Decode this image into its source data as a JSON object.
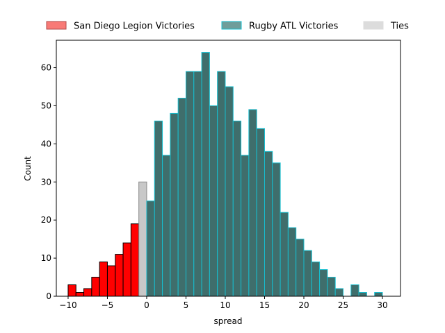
{
  "chart_data": {
    "type": "bar",
    "xlabel": "spread",
    "ylabel": "Count",
    "xlim": [
      -11.5,
      32.3
    ],
    "ylim": [
      0,
      67.2
    ],
    "xticks": [
      -10,
      -5,
      0,
      5,
      10,
      15,
      20,
      25,
      30
    ],
    "yticks": [
      0,
      10,
      20,
      30,
      40,
      50,
      60
    ],
    "grid": false,
    "legend_position": "top",
    "bin_width": 1,
    "series": [
      {
        "name": "San Diego Legion Victories",
        "color": "#ff0000",
        "edge_color": "#000000",
        "bins": [
          {
            "x": -9.5,
            "count": 3
          },
          {
            "x": -8.5,
            "count": 1
          },
          {
            "x": -7.5,
            "count": 2
          },
          {
            "x": -6.5,
            "count": 5
          },
          {
            "x": -5.5,
            "count": 9
          },
          {
            "x": -4.5,
            "count": 8
          },
          {
            "x": -3.5,
            "count": 11
          },
          {
            "x": -2.5,
            "count": 14
          },
          {
            "x": -1.5,
            "count": 19
          }
        ]
      },
      {
        "name": "Ties",
        "color": "#c8c8c8",
        "edge_color": "#8a8a8a",
        "bins": [
          {
            "x": -0.5,
            "count": 30
          }
        ]
      },
      {
        "name": "Rugby ATL Victories",
        "color": "#3f6e6c",
        "edge_color": "#17becf",
        "bins": [
          {
            "x": 0.5,
            "count": 25
          },
          {
            "x": 1.5,
            "count": 46
          },
          {
            "x": 2.5,
            "count": 37
          },
          {
            "x": 3.5,
            "count": 48
          },
          {
            "x": 4.5,
            "count": 52
          },
          {
            "x": 5.5,
            "count": 59
          },
          {
            "x": 6.5,
            "count": 59
          },
          {
            "x": 7.5,
            "count": 64
          },
          {
            "x": 8.5,
            "count": 50
          },
          {
            "x": 9.5,
            "count": 59
          },
          {
            "x": 10.5,
            "count": 55
          },
          {
            "x": 11.5,
            "count": 46
          },
          {
            "x": 12.5,
            "count": 37
          },
          {
            "x": 13.5,
            "count": 49
          },
          {
            "x": 14.5,
            "count": 44
          },
          {
            "x": 15.5,
            "count": 38
          },
          {
            "x": 16.5,
            "count": 35
          },
          {
            "x": 17.5,
            "count": 22
          },
          {
            "x": 18.5,
            "count": 18
          },
          {
            "x": 19.5,
            "count": 15
          },
          {
            "x": 20.5,
            "count": 12
          },
          {
            "x": 21.5,
            "count": 9
          },
          {
            "x": 22.5,
            "count": 7
          },
          {
            "x": 23.5,
            "count": 5
          },
          {
            "x": 24.5,
            "count": 2
          },
          {
            "x": 25.5,
            "count": 0
          },
          {
            "x": 26.5,
            "count": 3
          },
          {
            "x": 27.5,
            "count": 1
          },
          {
            "x": 28.5,
            "count": 0
          },
          {
            "x": 29.5,
            "count": 1
          }
        ]
      }
    ],
    "legend": [
      {
        "label": "San Diego Legion Victories",
        "color": "#f87a76",
        "edge_color": "#b04a48"
      },
      {
        "label": "Rugby ATL Victories",
        "color": "#6f9d9a",
        "edge_color": "#17becf"
      },
      {
        "label": "Ties",
        "color": "#dcdcdc",
        "edge_color": "#dcdcdc"
      }
    ]
  }
}
